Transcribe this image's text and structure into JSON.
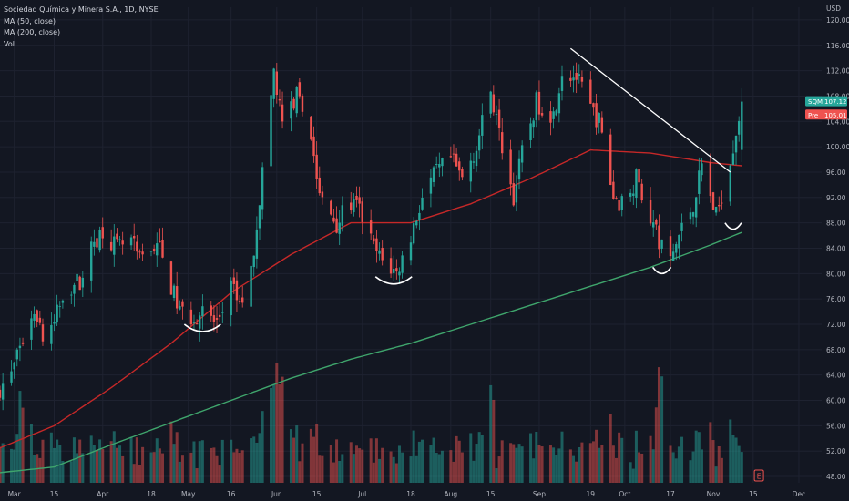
{
  "header": {
    "title": "Sociedad Química y Minera S.A., 1D, NYSE",
    "indicators": [
      "MA (50, close)",
      "MA (200, close)",
      "Vol"
    ],
    "currency": "USD"
  },
  "price_tags": [
    {
      "label": "SQM",
      "value": "107.12",
      "color": "#26a69a"
    },
    {
      "label": "Pre",
      "value": "105.01",
      "color": "#ef5350"
    }
  ],
  "event_markers": [
    {
      "label": "E",
      "date": "Nov 15"
    }
  ],
  "colors": {
    "background": "#131722",
    "grid": "#1e2230",
    "up": "#26a69a",
    "down": "#ef5350",
    "ma50": "#c62828",
    "ma200": "#3fa56c",
    "annotation": "#ffffff"
  },
  "chart_data": {
    "type": "candlestick",
    "title": "Sociedad Química y Minera S.A., 1D, NYSE",
    "ylim": [
      47,
      122
    ],
    "y_ticks": [
      48,
      52,
      56,
      60,
      64,
      68,
      72,
      76,
      80,
      84,
      88,
      92,
      96,
      100,
      104,
      108,
      112,
      116,
      120
    ],
    "x_ticks": [
      "Mar",
      "15",
      "Apr",
      "18",
      "May",
      "16",
      "Jun",
      "15",
      "Jul",
      "18",
      "Aug",
      "15",
      "Sep",
      "19",
      "Oct",
      "17",
      "Nov",
      "15",
      "Dec"
    ],
    "x_range": [
      "2022-02-24",
      "2022-12-09"
    ],
    "close_anchors": [
      [
        "2022-02-24",
        62
      ],
      [
        "2022-02-28",
        64
      ],
      [
        "2022-03-03",
        68
      ],
      [
        "2022-03-08",
        75
      ],
      [
        "2022-03-11",
        70
      ],
      [
        "2022-03-15",
        72
      ],
      [
        "2022-03-18",
        77
      ],
      [
        "2022-03-24",
        79
      ],
      [
        "2022-03-29",
        85
      ],
      [
        "2022-04-01",
        87
      ],
      [
        "2022-04-06",
        84
      ],
      [
        "2022-04-11",
        85
      ],
      [
        "2022-04-14",
        82
      ],
      [
        "2022-04-20",
        85
      ],
      [
        "2022-04-25",
        78
      ],
      [
        "2022-04-28",
        74
      ],
      [
        "2022-05-03",
        73
      ],
      [
        "2022-05-06",
        74
      ],
      [
        "2022-05-11",
        72
      ],
      [
        "2022-05-16",
        78
      ],
      [
        "2022-05-19",
        75
      ],
      [
        "2022-05-23",
        80
      ],
      [
        "2022-05-26",
        92
      ],
      [
        "2022-05-31",
        112
      ],
      [
        "2022-06-03",
        103
      ],
      [
        "2022-06-08",
        108
      ],
      [
        "2022-06-13",
        102
      ],
      [
        "2022-06-16",
        92
      ],
      [
        "2022-06-22",
        88
      ],
      [
        "2022-06-27",
        91
      ],
      [
        "2022-06-30",
        90
      ],
      [
        "2022-07-05",
        84
      ],
      [
        "2022-07-08",
        82
      ],
      [
        "2022-07-13",
        80
      ],
      [
        "2022-07-18",
        86
      ],
      [
        "2022-07-22",
        92
      ],
      [
        "2022-07-27",
        96
      ],
      [
        "2022-08-01",
        98
      ],
      [
        "2022-08-05",
        95
      ],
      [
        "2022-08-10",
        100
      ],
      [
        "2022-08-15",
        109
      ],
      [
        "2022-08-18",
        102
      ],
      [
        "2022-08-23",
        92
      ],
      [
        "2022-08-26",
        99
      ],
      [
        "2022-08-31",
        107
      ],
      [
        "2022-09-06",
        105
      ],
      [
        "2022-09-09",
        112
      ],
      [
        "2022-09-14",
        111
      ],
      [
        "2022-09-19",
        106
      ],
      [
        "2022-09-22",
        104
      ],
      [
        "2022-09-27",
        92
      ],
      [
        "2022-09-30",
        91
      ],
      [
        "2022-10-05",
        95
      ],
      [
        "2022-10-10",
        89
      ],
      [
        "2022-10-13",
        85
      ],
      [
        "2022-10-17",
        82
      ],
      [
        "2022-10-20",
        86
      ],
      [
        "2022-10-25",
        91
      ],
      [
        "2022-10-28",
        97
      ],
      [
        "2022-11-02",
        89
      ],
      [
        "2022-11-07",
        98
      ],
      [
        "2022-11-11",
        107.12
      ]
    ],
    "ma50_anchors": [
      [
        "2022-02-24",
        52.5
      ],
      [
        "2022-03-15",
        56
      ],
      [
        "2022-04-04",
        62
      ],
      [
        "2022-04-25",
        69
      ],
      [
        "2022-05-16",
        77
      ],
      [
        "2022-06-06",
        83
      ],
      [
        "2022-06-27",
        88
      ],
      [
        "2022-07-18",
        88
      ],
      [
        "2022-08-08",
        91
      ],
      [
        "2022-08-29",
        95
      ],
      [
        "2022-09-19",
        99.5
      ],
      [
        "2022-10-10",
        99
      ],
      [
        "2022-10-31",
        97.5
      ],
      [
        "2022-11-11",
        97
      ]
    ],
    "ma200_anchors": [
      [
        "2022-02-24",
        48.6
      ],
      [
        "2022-03-15",
        49.5
      ],
      [
        "2022-04-04",
        53
      ],
      [
        "2022-04-25",
        56.5
      ],
      [
        "2022-05-16",
        60
      ],
      [
        "2022-06-06",
        63.5
      ],
      [
        "2022-06-27",
        66.5
      ],
      [
        "2022-07-18",
        69
      ],
      [
        "2022-08-08",
        72
      ],
      [
        "2022-08-29",
        75
      ],
      [
        "2022-09-19",
        78
      ],
      [
        "2022-10-10",
        81
      ],
      [
        "2022-10-31",
        84.5
      ],
      [
        "2022-11-11",
        86.5
      ]
    ],
    "volume_spikes": [
      "2022-03-04",
      "2022-06-01",
      "2022-06-03",
      "2022-08-15",
      "2022-10-13"
    ],
    "annotations": {
      "trendline": [
        [
          "2022-09-12",
          115.5
        ],
        [
          "2022-11-07",
          96
        ]
      ],
      "bottom_arcs": [
        {
          "date": "2022-05-06",
          "value": 72
        },
        {
          "date": "2022-07-12",
          "value": 79.5
        },
        {
          "date": "2022-10-14",
          "value": 81
        },
        {
          "date": "2022-11-08",
          "value": 88
        }
      ]
    }
  }
}
